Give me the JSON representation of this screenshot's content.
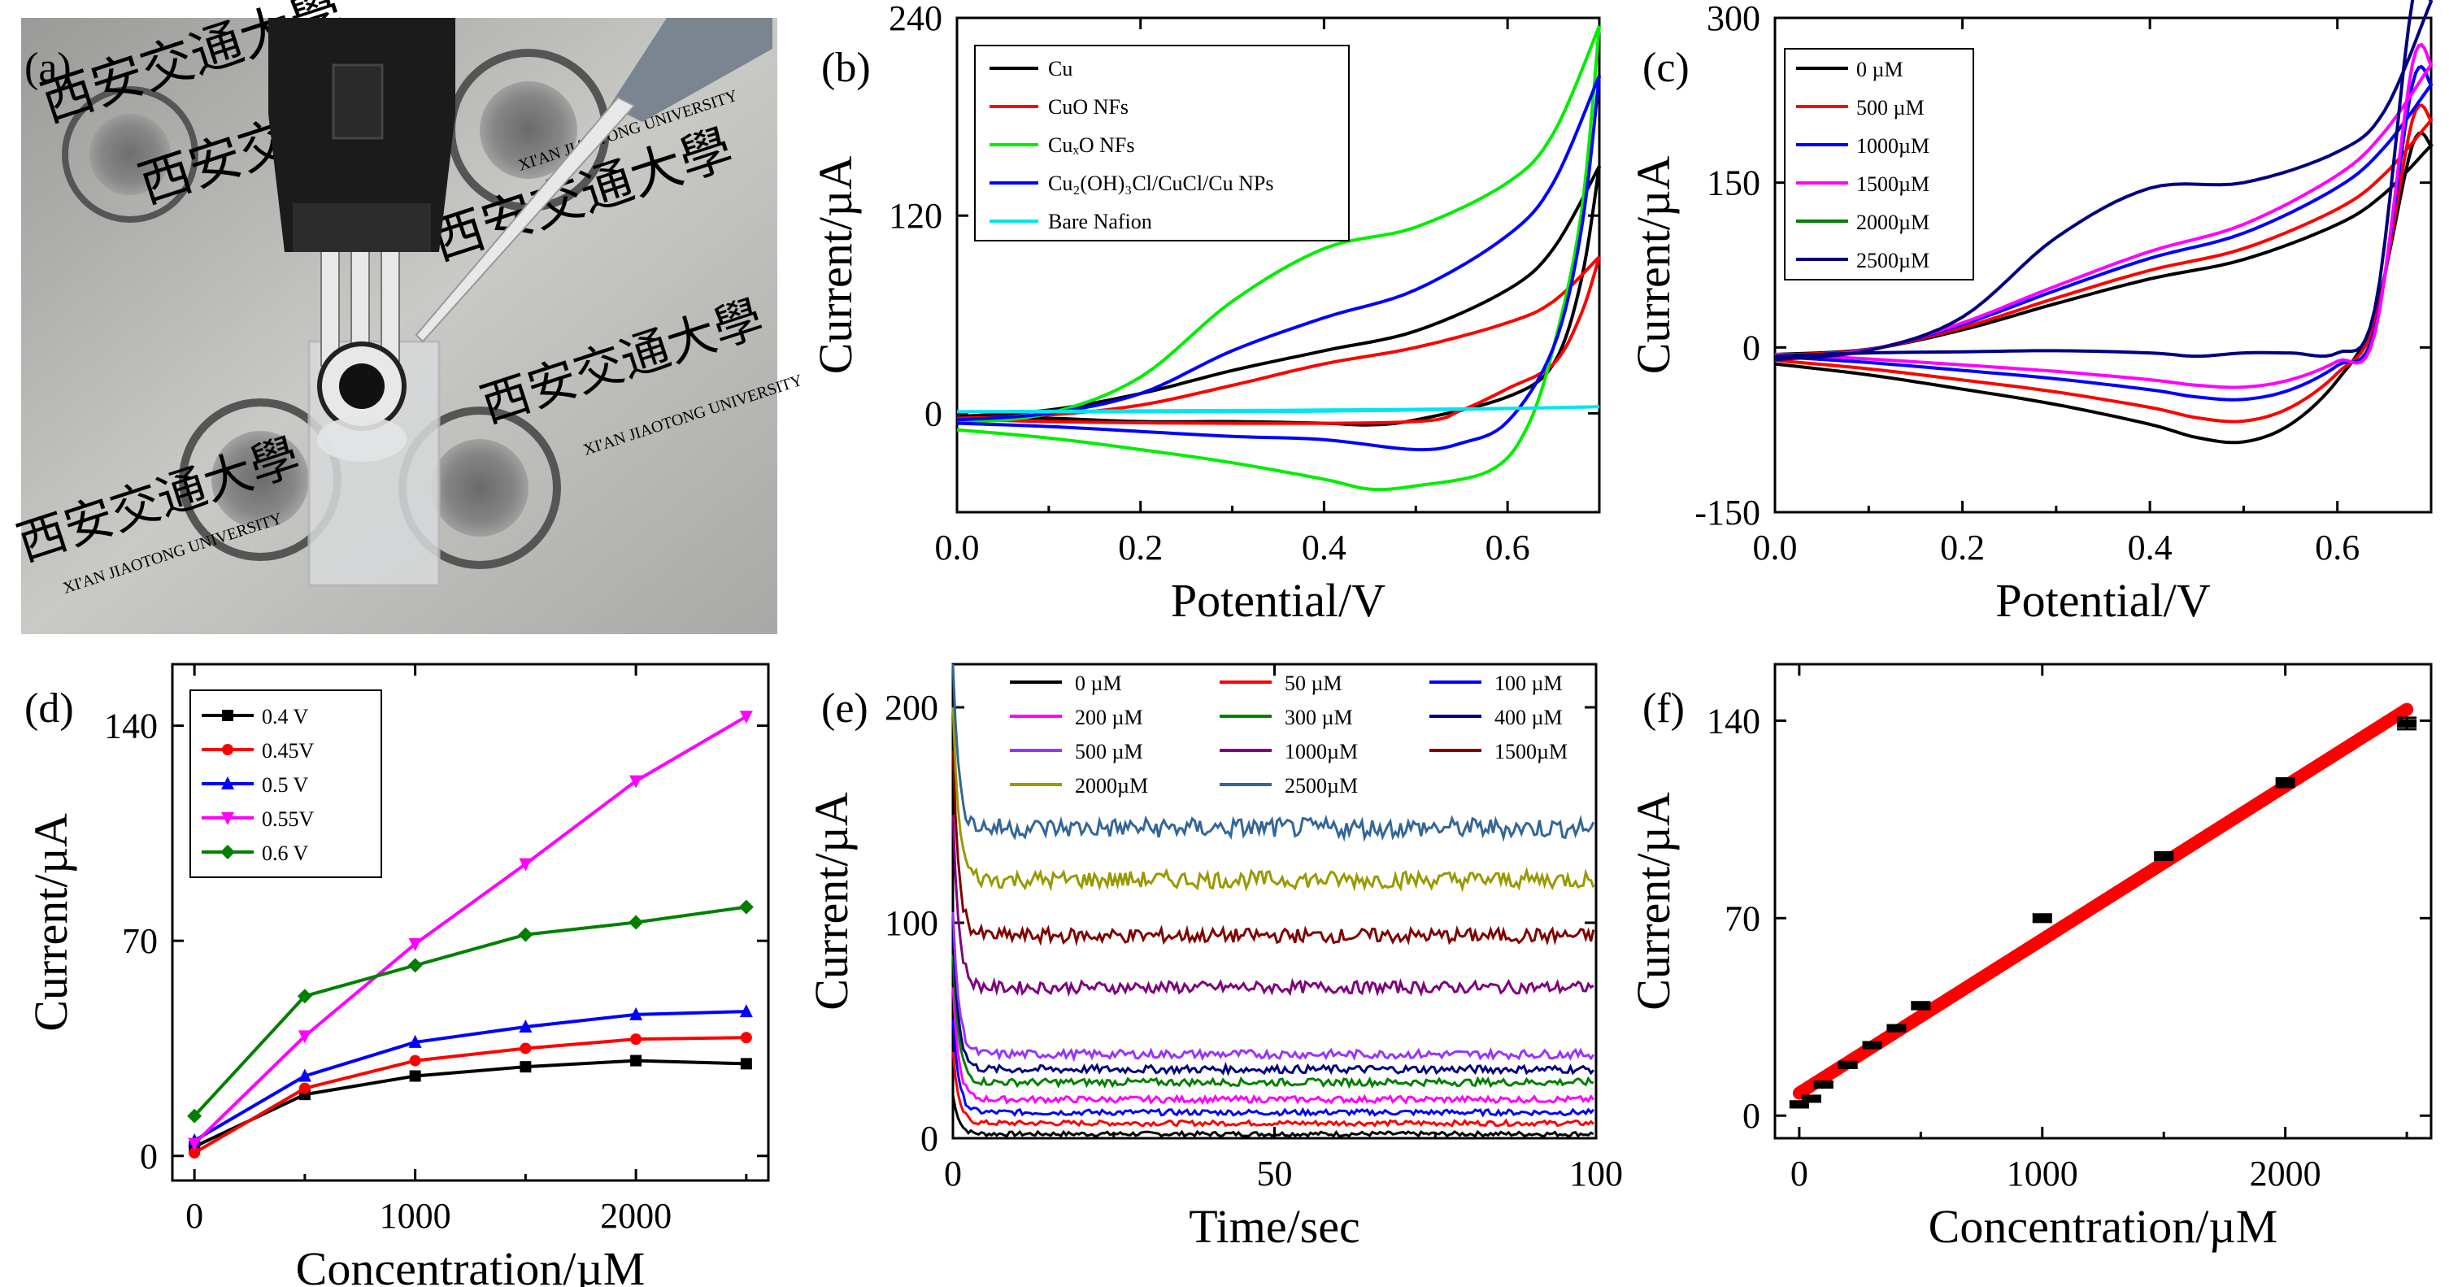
{
  "chart_data": [
    {
      "panel": "(a)",
      "type": "photo",
      "description_text": [
        "西安交通大學",
        "XI'AN JIAOTONG UNIVERSITY"
      ]
    },
    {
      "panel": "(b)",
      "type": "line",
      "xlabel": "Potential/V",
      "ylabel": "Current/µA",
      "xlim": [
        0,
        0.7
      ],
      "ylim": [
        -60,
        240
      ],
      "xticks": [
        0.0,
        0.2,
        0.4,
        0.6
      ],
      "xticklabels": [
        "0.0",
        "0.2",
        "0.4",
        "0.6"
      ],
      "yticks": [
        0,
        120,
        240
      ],
      "legend_position": "top-left",
      "series": [
        {
          "name": "Cu",
          "color": "#000000",
          "forward": [
            [
              0,
              -2
            ],
            [
              0.1,
              2
            ],
            [
              0.2,
              12
            ],
            [
              0.3,
              26
            ],
            [
              0.4,
              38
            ],
            [
              0.5,
              50
            ],
            [
              0.6,
              75
            ],
            [
              0.65,
              100
            ],
            [
              0.7,
              150
            ]
          ],
          "reverse": [
            [
              0.7,
              150
            ],
            [
              0.68,
              80
            ],
            [
              0.65,
              30
            ],
            [
              0.6,
              10
            ],
            [
              0.5,
              -4
            ],
            [
              0.45,
              -7
            ],
            [
              0.4,
              -6
            ],
            [
              0.3,
              -5
            ],
            [
              0.2,
              -5
            ],
            [
              0.1,
              -3
            ],
            [
              0,
              -2
            ]
          ]
        },
        {
          "name": "CuO NFs",
          "color": "#ff0000",
          "forward": [
            [
              0,
              -3
            ],
            [
              0.1,
              -1
            ],
            [
              0.2,
              5
            ],
            [
              0.3,
              17
            ],
            [
              0.4,
              30
            ],
            [
              0.5,
              40
            ],
            [
              0.6,
              55
            ],
            [
              0.65,
              68
            ],
            [
              0.7,
              95
            ]
          ],
          "reverse": [
            [
              0.7,
              95
            ],
            [
              0.68,
              60
            ],
            [
              0.65,
              30
            ],
            [
              0.6,
              15
            ],
            [
              0.55,
              2
            ],
            [
              0.5,
              -5
            ],
            [
              0.3,
              -6
            ],
            [
              0.1,
              -5
            ],
            [
              0,
              -3
            ]
          ]
        },
        {
          "name": "CuₓO NFs",
          "color": "#00ee00",
          "forward": [
            [
              0,
              -6
            ],
            [
              0.1,
              0
            ],
            [
              0.2,
              22
            ],
            [
              0.3,
              68
            ],
            [
              0.4,
              100
            ],
            [
              0.5,
              113
            ],
            [
              0.6,
              140
            ],
            [
              0.65,
              170
            ],
            [
              0.7,
              235
            ]
          ],
          "reverse": [
            [
              0.7,
              235
            ],
            [
              0.68,
              120
            ],
            [
              0.65,
              40
            ],
            [
              0.62,
              -10
            ],
            [
              0.58,
              -35
            ],
            [
              0.5,
              -44
            ],
            [
              0.45,
              -46
            ],
            [
              0.4,
              -40
            ],
            [
              0.3,
              -30
            ],
            [
              0.2,
              -22
            ],
            [
              0.1,
              -15
            ],
            [
              0,
              -10
            ]
          ]
        },
        {
          "name": "Cu₂(OH)₃Cl/CuCl/Cu NPs",
          "color": "#0000ff",
          "forward": [
            [
              0,
              -4
            ],
            [
              0.1,
              0
            ],
            [
              0.2,
              12
            ],
            [
              0.3,
              38
            ],
            [
              0.4,
              58
            ],
            [
              0.5,
              75
            ],
            [
              0.6,
              108
            ],
            [
              0.65,
              140
            ],
            [
              0.7,
              205
            ]
          ],
          "reverse": [
            [
              0.7,
              205
            ],
            [
              0.68,
              110
            ],
            [
              0.65,
              40
            ],
            [
              0.6,
              -5
            ],
            [
              0.55,
              -18
            ],
            [
              0.5,
              -22
            ],
            [
              0.4,
              -16
            ],
            [
              0.3,
              -14
            ],
            [
              0.2,
              -11
            ],
            [
              0.1,
              -8
            ],
            [
              0,
              -6
            ]
          ]
        },
        {
          "name": "Bare Nafion",
          "color": "#00e5ee",
          "forward": [
            [
              0,
              1
            ],
            [
              0.2,
              1.5
            ],
            [
              0.4,
              2
            ],
            [
              0.6,
              3
            ],
            [
              0.7,
              4
            ]
          ],
          "reverse": [
            [
              0.7,
              4
            ],
            [
              0.5,
              2
            ],
            [
              0.3,
              1
            ],
            [
              0,
              1
            ]
          ]
        }
      ]
    },
    {
      "panel": "(c)",
      "type": "line",
      "xlabel": "Potential/V",
      "ylabel": "Current/µA",
      "xlim": [
        0,
        0.7
      ],
      "ylim": [
        -150,
        300
      ],
      "xticks": [
        0.0,
        0.2,
        0.4,
        0.6
      ],
      "xticklabels": [
        "0.0",
        "0.2",
        "0.4",
        "0.6"
      ],
      "yticks": [
        -150,
        0,
        150,
        300
      ],
      "legend_position": "top-left",
      "series": [
        {
          "name": "0     µM",
          "color": "#000000",
          "scale": 0.8,
          "rscale": 1.0
        },
        {
          "name": "500  µM",
          "color": "#ff0000",
          "scale": 0.9,
          "rscale": 0.78
        },
        {
          "name": "1000µM",
          "color": "#0000ff",
          "scale": 1.04,
          "rscale": 0.55
        },
        {
          "name": "1500µM",
          "color": "#ff00ff",
          "scale": 1.12,
          "rscale": 0.42
        },
        {
          "name": "2000µM",
          "color": "#008000",
          "scale": 0.9,
          "rscale": 0.78,
          "hidden": true
        },
        {
          "name": "2500µM",
          "color": "#000080",
          "scale": 1.38,
          "rscale": 0.06
        }
      ]
    },
    {
      "panel": "(d)",
      "type": "line",
      "xlabel": "Concentration/µM",
      "ylabel": "Current/µA",
      "xlim": [
        -100,
        2600
      ],
      "ylim": [
        -8,
        160
      ],
      "xticks": [
        0,
        1000,
        2000
      ],
      "yticks": [
        0,
        70,
        140
      ],
      "legend_position": "top-left",
      "x": [
        0,
        500,
        1000,
        1500,
        2000,
        2500
      ],
      "series": [
        {
          "name": "0.4  V",
          "color": "#000000",
          "marker": "square",
          "values": [
            3,
            20,
            26,
            29,
            31,
            30
          ]
        },
        {
          "name": "0.45V",
          "color": "#ff0000",
          "marker": "circle",
          "values": [
            1,
            22,
            31,
            35,
            38,
            38.5
          ]
        },
        {
          "name": "0.5  V",
          "color": "#0000ff",
          "marker": "triangle-up",
          "values": [
            5,
            26,
            37,
            42,
            46,
            47
          ]
        },
        {
          "name": "0.55V",
          "color": "#ff00ff",
          "marker": "triangle-down",
          "values": [
            4,
            39,
            69,
            95,
            122,
            143
          ]
        },
        {
          "name": "0.6  V",
          "color": "#008000",
          "marker": "diamond",
          "values": [
            13,
            52,
            62,
            72,
            76,
            81
          ]
        }
      ]
    },
    {
      "panel": "(e)",
      "type": "line",
      "xlabel": "Time/sec",
      "ylabel": "Current/µA",
      "xlim": [
        0,
        100
      ],
      "ylim": [
        0,
        220
      ],
      "xticks": [
        0,
        50,
        100
      ],
      "yticks": [
        0,
        100,
        200
      ],
      "legend_position": "top",
      "legend_columns": 3,
      "series": [
        {
          "name": "0     µM",
          "color": "#000000",
          "steady": 2,
          "peak": 20
        },
        {
          "name": "50    µM",
          "color": "#ff0000",
          "steady": 7,
          "peak": 40
        },
        {
          "name": "100  µM",
          "color": "#0000ff",
          "steady": 12,
          "peak": 55
        },
        {
          "name": "200  µM",
          "color": "#ff00ff",
          "steady": 18,
          "peak": 70
        },
        {
          "name": "300  µM",
          "color": "#008000",
          "steady": 26,
          "peak": 85
        },
        {
          "name": "400  µM",
          "color": "#000080",
          "steady": 32,
          "peak": 95
        },
        {
          "name": "500  µM",
          "color": "#9933ff",
          "steady": 39,
          "peak": 105
        },
        {
          "name": "1000µM",
          "color": "#800080",
          "steady": 70,
          "peak": 150
        },
        {
          "name": "1500µM",
          "color": "#800000",
          "steady": 94,
          "peak": 180
        },
        {
          "name": "2000µM",
          "color": "#999900",
          "steady": 120,
          "peak": 200
        },
        {
          "name": "2500µM",
          "color": "#336699",
          "steady": 144,
          "peak": 220
        }
      ]
    },
    {
      "panel": "(f)",
      "type": "scatter",
      "xlabel": "Concentration/µM",
      "ylabel": "Current/µA",
      "xlim": [
        -100,
        2600
      ],
      "ylim": [
        -8,
        160
      ],
      "xticks": [
        0,
        1000,
        2000
      ],
      "yticks": [
        0,
        70,
        140
      ],
      "x": [
        0,
        50,
        100,
        200,
        300,
        400,
        500,
        1000,
        1500,
        2000,
        2500
      ],
      "values": [
        4,
        6,
        11,
        18,
        25,
        31,
        39,
        70,
        92,
        118,
        139
      ],
      "error": [
        1,
        1,
        1,
        1,
        1,
        1,
        1.2,
        1.3,
        1.3,
        1.5,
        2
      ],
      "fit": {
        "color": "#ff0000",
        "x": [
          0,
          2500
        ],
        "y": [
          8,
          144
        ]
      }
    }
  ],
  "panels": {
    "a": {
      "label": "(a)"
    },
    "b": {
      "label": "(b)"
    },
    "c": {
      "label": "(c)"
    },
    "d": {
      "label": "(d)"
    },
    "e": {
      "label": "(e)"
    },
    "f": {
      "label": "(f)"
    }
  }
}
